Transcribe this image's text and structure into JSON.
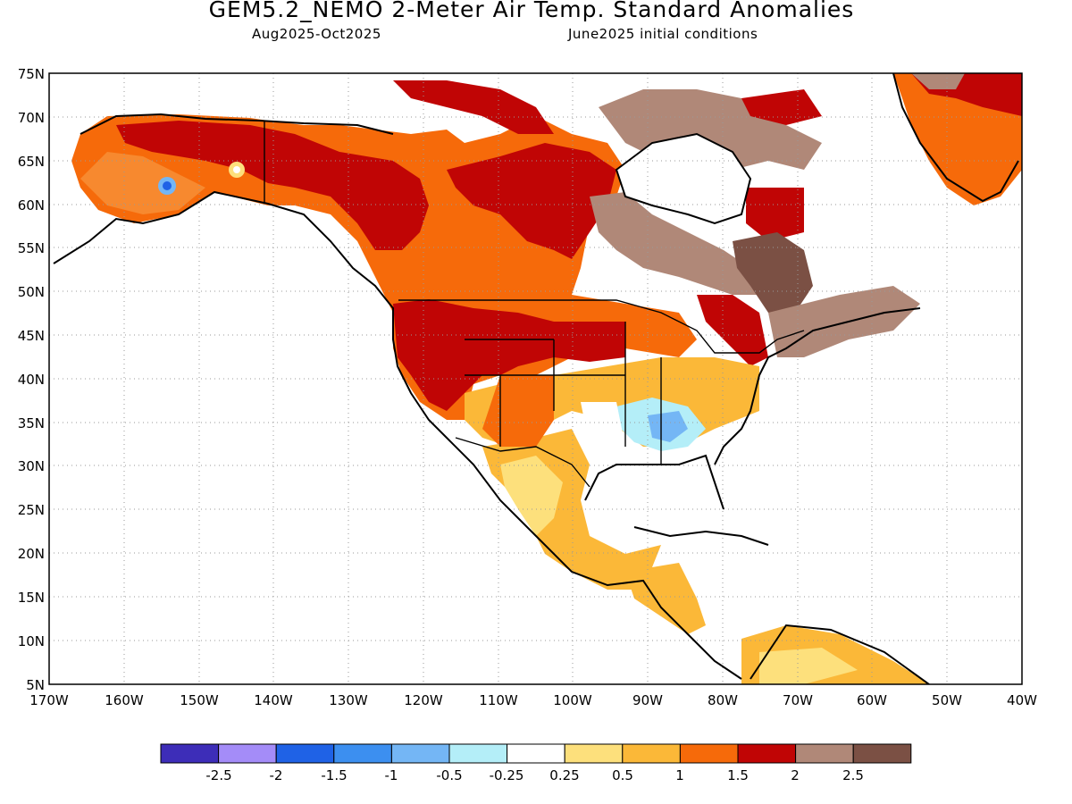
{
  "title": "GEM5.2_NEMO 2-Meter Air Temp. Standard Anomalies",
  "subtitle_left": "Aug2025-Oct2025",
  "subtitle_right": "June2025 initial conditions",
  "lat_labels": [
    "75N",
    "70N",
    "65N",
    "60N",
    "55N",
    "50N",
    "45N",
    "40N",
    "35N",
    "30N",
    "25N",
    "20N",
    "15N",
    "10N",
    "5N"
  ],
  "lon_labels": [
    "170W",
    "160W",
    "150W",
    "140W",
    "130W",
    "120W",
    "110W",
    "100W",
    "90W",
    "80W",
    "70W",
    "60W",
    "50W",
    "40W"
  ],
  "colorbar": {
    "colors": [
      "#3d2db8",
      "#a48cf8",
      "#1f62e6",
      "#3c8ff0",
      "#74b6f5",
      "#b4eef8",
      "#ffffff",
      "#fde07c",
      "#fbb838",
      "#f66a0a",
      "#c00505",
      "#b08878",
      "#7b5044"
    ],
    "labels": [
      "-2.5",
      "-2",
      "-1.5",
      "-1",
      "-0.5",
      "-0.25",
      "0.25",
      "0.5",
      "1",
      "1.5",
      "2",
      "2.5"
    ]
  }
}
